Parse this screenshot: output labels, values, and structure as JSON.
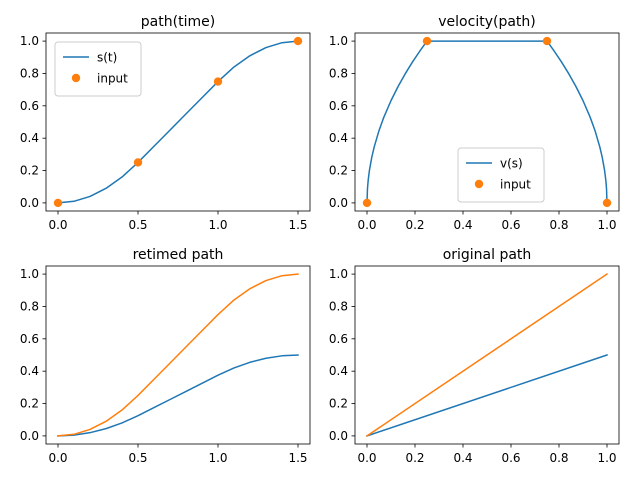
{
  "figure": {
    "width": 640,
    "height": 480
  },
  "colors": {
    "series_blue": "#1f77b4",
    "series_orange": "#ff7f0e",
    "frame": "#000000"
  },
  "chart_data": [
    {
      "type": "line",
      "title": "path(time)",
      "xlim": [
        -0.075,
        1.575
      ],
      "ylim": [
        -0.05,
        1.05
      ],
      "xticks": [
        0,
        0.5,
        1,
        1.5
      ],
      "xtick_labels": [
        "0.0",
        "0.5",
        "1.0",
        "1.5"
      ],
      "yticks": [
        0,
        0.2,
        0.4,
        0.6,
        0.8,
        1
      ],
      "ytick_labels": [
        "0.0",
        "0.2",
        "0.4",
        "0.6",
        "0.8",
        "1.0"
      ],
      "legend": {
        "loc": "upper-left"
      },
      "series": [
        {
          "name": "s(t)",
          "kind": "line",
          "color": "#1f77b4",
          "x": [
            0,
            0.1,
            0.2,
            0.3,
            0.4,
            0.5,
            0.6,
            0.7,
            0.8,
            0.9,
            1.0,
            1.1,
            1.2,
            1.3,
            1.4,
            1.5
          ],
          "y": [
            0,
            0.01,
            0.04,
            0.09,
            0.16,
            0.25,
            0.35,
            0.45,
            0.55,
            0.65,
            0.75,
            0.84,
            0.91,
            0.96,
            0.99,
            1.0
          ]
        },
        {
          "name": "input",
          "kind": "marker",
          "color": "#ff7f0e",
          "x": [
            0,
            0.5,
            1.0,
            1.5
          ],
          "y": [
            0,
            0.25,
            0.75,
            1.0
          ]
        }
      ]
    },
    {
      "type": "line",
      "title": "velocity(path)",
      "xlim": [
        -0.05,
        1.05
      ],
      "ylim": [
        -0.05,
        1.05
      ],
      "xticks": [
        0,
        0.2,
        0.4,
        0.6,
        0.8,
        1
      ],
      "xtick_labels": [
        "0.0",
        "0.2",
        "0.4",
        "0.6",
        "0.8",
        "1.0"
      ],
      "yticks": [
        0,
        0.2,
        0.4,
        0.6,
        0.8,
        1
      ],
      "ytick_labels": [
        "0.0",
        "0.2",
        "0.4",
        "0.6",
        "0.8",
        "1.0"
      ],
      "legend": {
        "loc": "lower-center"
      },
      "series": [
        {
          "name": "v(s)",
          "kind": "line",
          "color": "#1f77b4",
          "x": [
            0,
            0.002,
            0.005,
            0.01,
            0.02,
            0.03,
            0.05,
            0.07,
            0.1,
            0.13,
            0.16,
            0.19,
            0.22,
            0.25,
            0.75,
            0.78,
            0.81,
            0.84,
            0.87,
            0.9,
            0.93,
            0.95,
            0.97,
            0.98,
            0.99,
            0.995,
            0.998,
            1.0
          ],
          "y": [
            0,
            0.089,
            0.141,
            0.2,
            0.283,
            0.346,
            0.447,
            0.529,
            0.632,
            0.721,
            0.8,
            0.872,
            0.938,
            1.0,
            1.0,
            0.938,
            0.872,
            0.8,
            0.721,
            0.632,
            0.529,
            0.447,
            0.346,
            0.283,
            0.2,
            0.141,
            0.089,
            0
          ]
        },
        {
          "name": "input",
          "kind": "marker",
          "color": "#ff7f0e",
          "x": [
            0,
            0.25,
            0.75,
            1.0
          ],
          "y": [
            0,
            1.0,
            1.0,
            0
          ]
        }
      ]
    },
    {
      "type": "line",
      "title": "retimed path",
      "xlim": [
        -0.075,
        1.575
      ],
      "ylim": [
        -0.05,
        1.05
      ],
      "xticks": [
        0,
        0.5,
        1,
        1.5
      ],
      "xtick_labels": [
        "0.0",
        "0.5",
        "1.0",
        "1.5"
      ],
      "yticks": [
        0,
        0.2,
        0.4,
        0.6,
        0.8,
        1
      ],
      "ytick_labels": [
        "0.0",
        "0.2",
        "0.4",
        "0.6",
        "0.8",
        "1.0"
      ],
      "series": [
        {
          "name": "",
          "kind": "line",
          "color": "#1f77b4",
          "x": [
            0,
            0.1,
            0.2,
            0.3,
            0.4,
            0.5,
            0.6,
            0.7,
            0.8,
            0.9,
            1.0,
            1.1,
            1.2,
            1.3,
            1.4,
            1.5
          ],
          "y": [
            0,
            0.005,
            0.02,
            0.045,
            0.08,
            0.125,
            0.175,
            0.225,
            0.275,
            0.325,
            0.375,
            0.42,
            0.455,
            0.48,
            0.495,
            0.5
          ]
        },
        {
          "name": "",
          "kind": "line",
          "color": "#ff7f0e",
          "x": [
            0,
            0.1,
            0.2,
            0.3,
            0.4,
            0.5,
            0.6,
            0.7,
            0.8,
            0.9,
            1.0,
            1.1,
            1.2,
            1.3,
            1.4,
            1.5
          ],
          "y": [
            0,
            0.01,
            0.04,
            0.09,
            0.16,
            0.25,
            0.35,
            0.45,
            0.55,
            0.65,
            0.75,
            0.84,
            0.91,
            0.96,
            0.99,
            1.0
          ]
        }
      ]
    },
    {
      "type": "line",
      "title": "original path",
      "xlim": [
        -0.05,
        1.05
      ],
      "ylim": [
        -0.05,
        1.05
      ],
      "xticks": [
        0,
        0.2,
        0.4,
        0.6,
        0.8,
        1
      ],
      "xtick_labels": [
        "0.0",
        "0.2",
        "0.4",
        "0.6",
        "0.8",
        "1.0"
      ],
      "yticks": [
        0,
        0.2,
        0.4,
        0.6,
        0.8,
        1
      ],
      "ytick_labels": [
        "0.0",
        "0.2",
        "0.4",
        "0.6",
        "0.8",
        "1.0"
      ],
      "series": [
        {
          "name": "",
          "kind": "line",
          "color": "#1f77b4",
          "x": [
            0,
            1
          ],
          "y": [
            0,
            0.5
          ]
        },
        {
          "name": "",
          "kind": "line",
          "color": "#ff7f0e",
          "x": [
            0,
            1
          ],
          "y": [
            0,
            1.0
          ]
        }
      ]
    }
  ]
}
